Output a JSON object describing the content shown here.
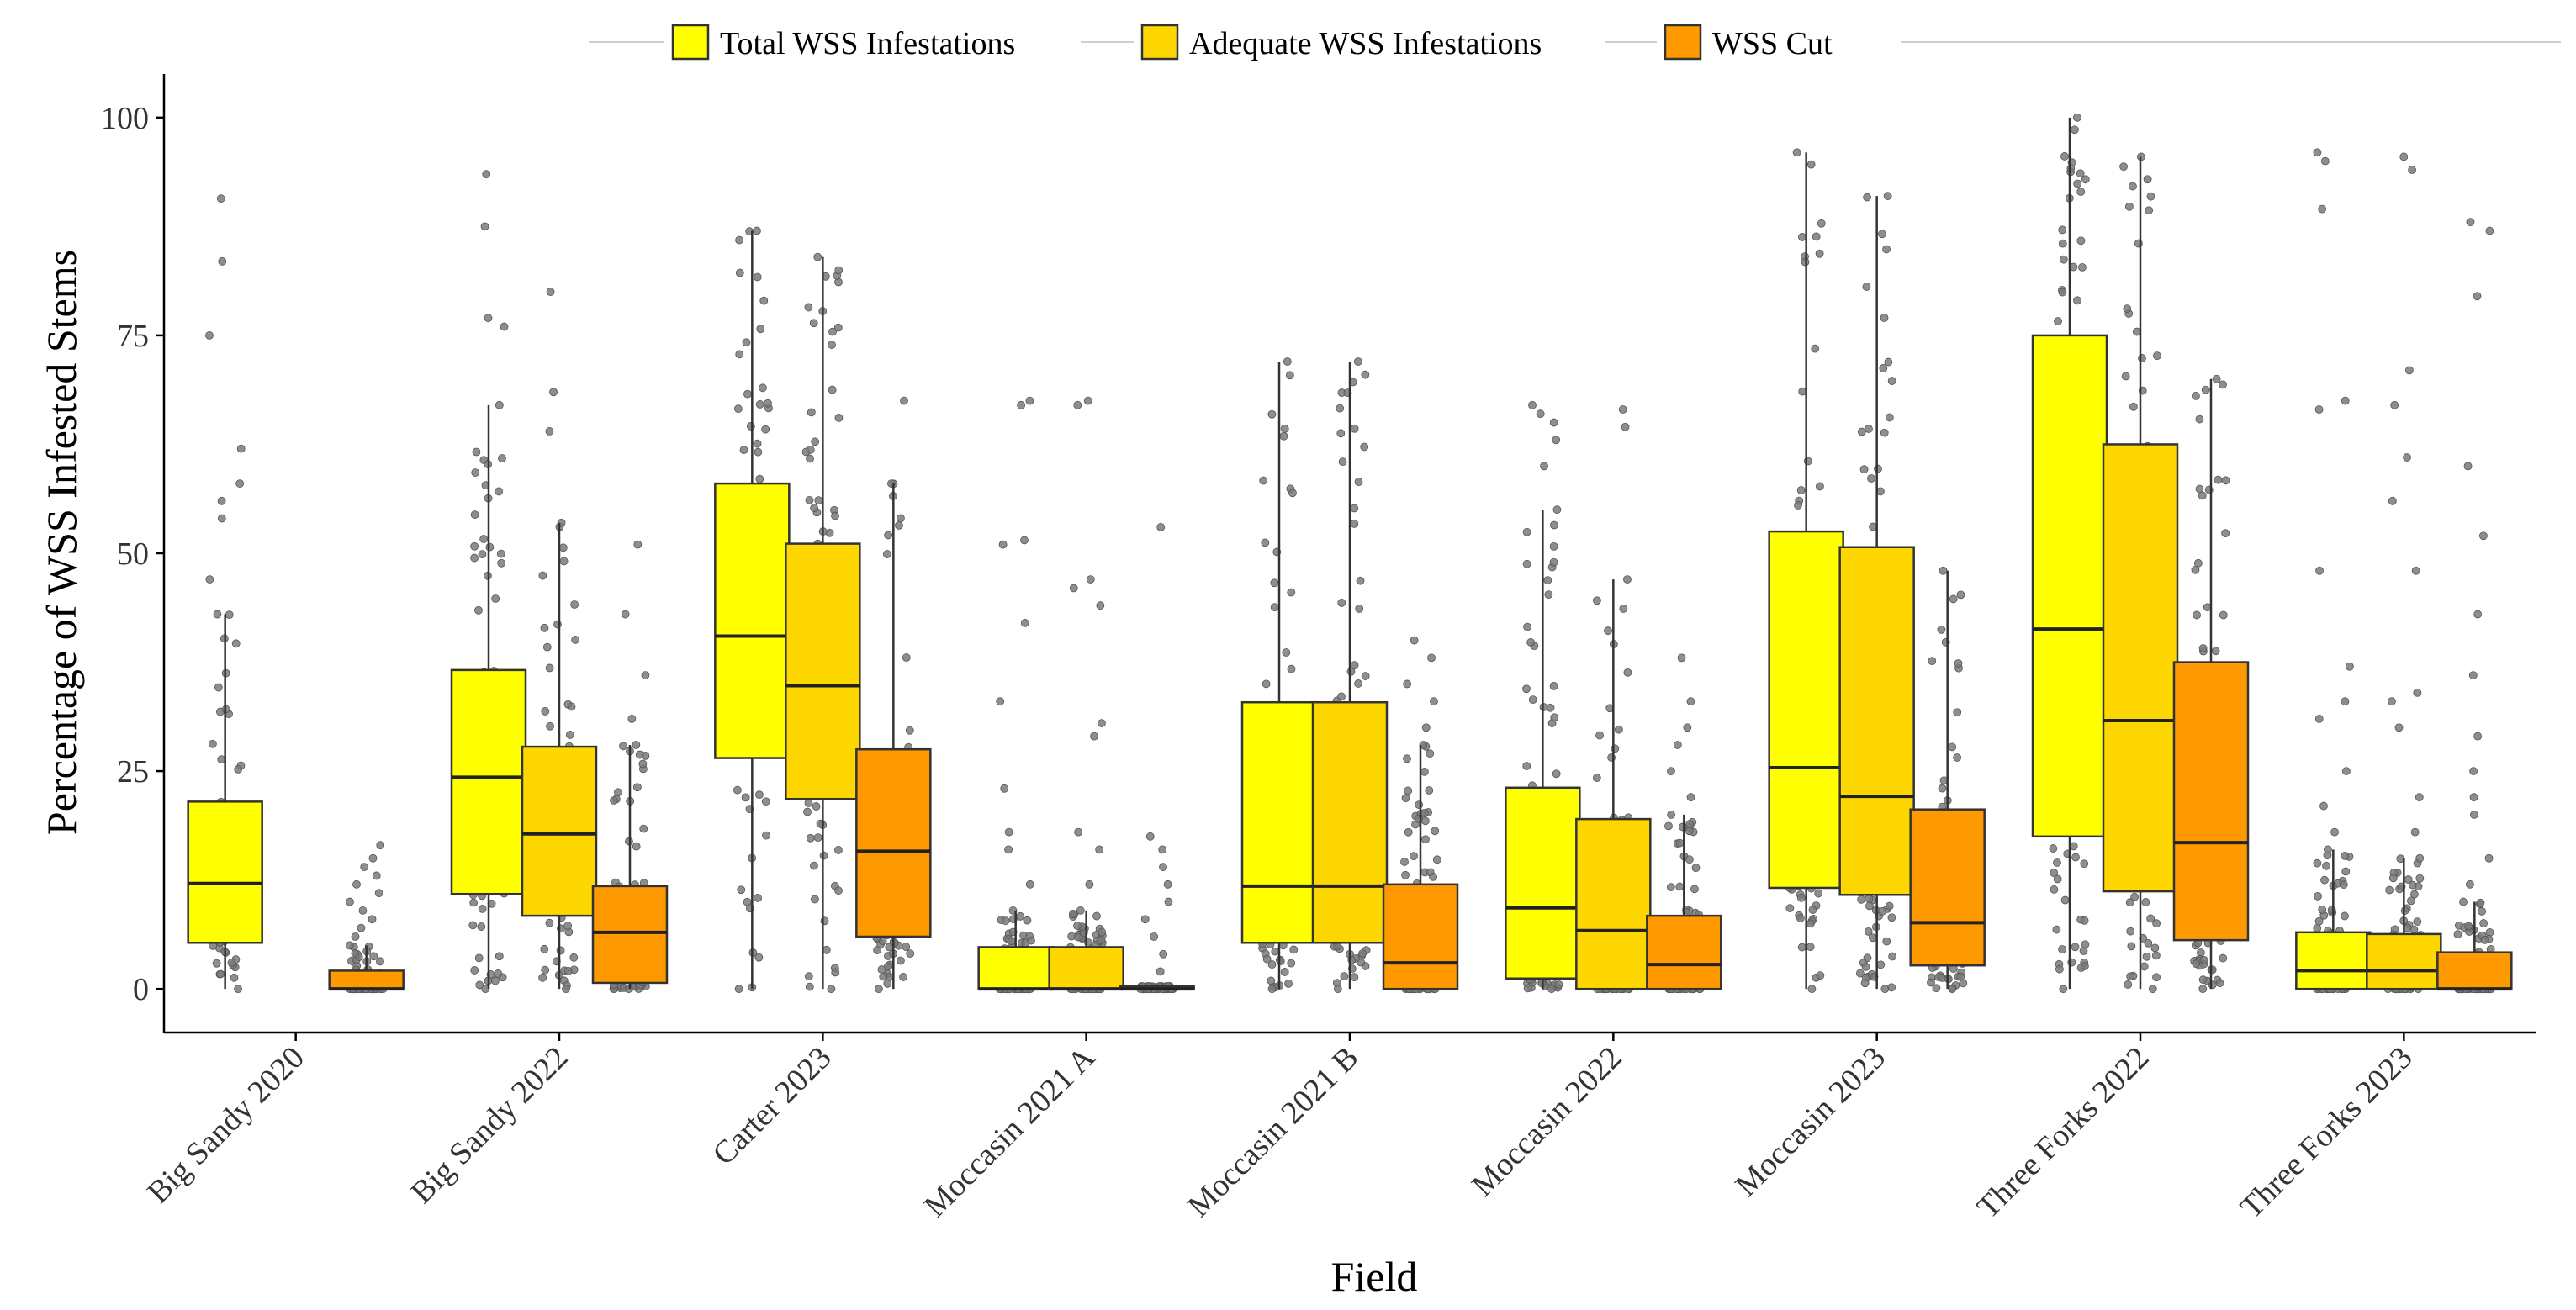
{
  "chart_data": {
    "type": "boxplot",
    "title": "",
    "xlabel": "Field",
    "ylabel": "Percentage of WSS Infested Stems",
    "ylim": [
      -5,
      105
    ],
    "yticks": [
      0,
      25,
      50,
      75,
      100
    ],
    "grid": false,
    "legend_position": "top",
    "categories": [
      "Big Sandy 2020",
      "Big Sandy 2022",
      "Carter 2023",
      "Moccasin 2021 A",
      "Moccasin 2021 B",
      "Moccasin 2022",
      "Moccasin 2023",
      "Three Forks 2022",
      "Three Forks 2023"
    ],
    "series": [
      {
        "name": "Total WSS Infestations",
        "color": "#FFFF00",
        "boxes": [
          {
            "category": "Big Sandy 2020",
            "q1": 5.3,
            "median": 12.1,
            "q3": 21.5,
            "whisker_low": 0,
            "whisker_high": 43,
            "outliers": [
              47,
              54,
              56,
              58,
              62,
              75,
              83.5,
              90.7
            ]
          },
          {
            "category": "Big Sandy 2022",
            "q1": 10.9,
            "median": 24.3,
            "q3": 36.6,
            "whisker_low": 0,
            "whisker_high": 67,
            "outliers": [
              76,
              77,
              87.5,
              93.5
            ]
          },
          {
            "category": "Carter 2023",
            "q1": 26.5,
            "median": 40.5,
            "q3": 58,
            "whisker_low": 0,
            "whisker_high": 87,
            "outliers": []
          },
          {
            "category": "Moccasin 2021 A",
            "q1": 0,
            "median": 0,
            "q3": 4.8,
            "whisker_low": 0,
            "whisker_high": 9,
            "outliers": [
              12,
              16,
              18,
              23,
              33,
              42,
              51,
              51.5,
              67,
              67.5
            ]
          },
          {
            "category": "Moccasin 2021 B",
            "q1": 5.3,
            "median": 11.8,
            "q3": 32.9,
            "whisker_low": 0,
            "whisker_high": 72,
            "outliers": []
          },
          {
            "category": "Moccasin 2022",
            "q1": 1.2,
            "median": 9.3,
            "q3": 23.1,
            "whisker_low": 0,
            "whisker_high": 55,
            "outliers": [
              60,
              63,
              65,
              66,
              67
            ]
          },
          {
            "category": "Moccasin 2023",
            "q1": 11.6,
            "median": 25.4,
            "q3": 52.5,
            "whisker_low": 0,
            "whisker_high": 96,
            "outliers": []
          },
          {
            "category": "Three Forks 2022",
            "q1": 17.5,
            "median": 41.3,
            "q3": 75,
            "whisker_low": 0,
            "whisker_high": 100,
            "outliers": []
          },
          {
            "category": "Three Forks 2023",
            "q1": 0,
            "median": 2.1,
            "q3": 6.5,
            "whisker_low": 0,
            "whisker_high": 16,
            "outliers": [
              18,
              21,
              25,
              31,
              33,
              37,
              48,
              66.5,
              67.5,
              89.5,
              95,
              96
            ]
          }
        ]
      },
      {
        "name": "Adequate WSS Infestations",
        "color": "#FFD700",
        "boxes": [
          {
            "category": "Big Sandy 2022",
            "q1": 8.4,
            "median": 17.8,
            "q3": 27.8,
            "whisker_low": 0,
            "whisker_high": 53.5,
            "outliers": [
              64,
              68.5,
              80
            ]
          },
          {
            "category": "Carter 2023",
            "q1": 21.8,
            "median": 34.8,
            "q3": 51.1,
            "whisker_low": 0,
            "whisker_high": 84,
            "outliers": []
          },
          {
            "category": "Moccasin 2021 A",
            "q1": 0,
            "median": 0,
            "q3": 4.8,
            "whisker_low": 0,
            "whisker_high": 9,
            "outliers": [
              12,
              16,
              18,
              29,
              30.5,
              44,
              46,
              47,
              67,
              67.5
            ]
          },
          {
            "category": "Moccasin 2021 B",
            "q1": 5.3,
            "median": 11.8,
            "q3": 32.9,
            "whisker_low": 0,
            "whisker_high": 72,
            "outliers": []
          },
          {
            "category": "Moccasin 2022",
            "q1": 0,
            "median": 6.7,
            "q3": 19.5,
            "whisker_low": 0,
            "whisker_high": 47,
            "outliers": [
              64.5,
              66.5
            ]
          },
          {
            "category": "Moccasin 2023",
            "q1": 10.8,
            "median": 22.1,
            "q3": 50.7,
            "whisker_low": 0,
            "whisker_high": 91,
            "outliers": []
          },
          {
            "category": "Three Forks 2022",
            "q1": 11.2,
            "median": 30.8,
            "q3": 62.5,
            "whisker_low": 0,
            "whisker_high": 95.5,
            "outliers": []
          },
          {
            "category": "Three Forks 2023",
            "q1": 0,
            "median": 2.1,
            "q3": 6.3,
            "whisker_low": 0,
            "whisker_high": 15,
            "outliers": [
              18,
              22,
              30,
              33,
              34,
              48,
              56,
              61,
              67,
              71,
              94,
              95.5
            ]
          }
        ]
      },
      {
        "name": "WSS Cut",
        "color": "#FF9900",
        "boxes": [
          {
            "category": "Big Sandy 2020",
            "q1": 0,
            "median": 0,
            "q3": 2.1,
            "whisker_low": 0,
            "whisker_high": 5,
            "outliers": [
              6,
              7,
              8,
              9,
              10,
              11,
              12,
              13,
              14,
              15,
              16.5
            ]
          },
          {
            "category": "Big Sandy 2022",
            "q1": 0.7,
            "median": 6.5,
            "q3": 11.8,
            "whisker_low": 0,
            "whisker_high": 28,
            "outliers": [
              31,
              36,
              43,
              51
            ]
          },
          {
            "category": "Carter 2023",
            "q1": 6,
            "median": 15.8,
            "q3": 27.5,
            "whisker_low": 0,
            "whisker_high": 58,
            "outliers": [
              67.5
            ]
          },
          {
            "category": "Moccasin 2021 A",
            "q1": 0,
            "median": 0,
            "q3": 0.3,
            "whisker_low": 0,
            "whisker_high": 0.3,
            "outliers": [
              2,
              4,
              6,
              8,
              10,
              12,
              14,
              16,
              17.5,
              53
            ]
          },
          {
            "category": "Moccasin 2021 B",
            "q1": 0,
            "median": 3,
            "q3": 12,
            "whisker_low": 0,
            "whisker_high": 28,
            "outliers": [
              30,
              33,
              35,
              38,
              40
            ]
          },
          {
            "category": "Moccasin 2022",
            "q1": 0,
            "median": 2.8,
            "q3": 8.4,
            "whisker_low": 0,
            "whisker_high": 20,
            "outliers": [
              22,
              25,
              28,
              30,
              33,
              38
            ]
          },
          {
            "category": "Moccasin 2023",
            "q1": 2.7,
            "median": 7.6,
            "q3": 20.6,
            "whisker_low": 0,
            "whisker_high": 48,
            "outliers": []
          },
          {
            "category": "Three Forks 2022",
            "q1": 5.6,
            "median": 16.8,
            "q3": 37.5,
            "whisker_low": 0,
            "whisker_high": 70,
            "outliers": []
          },
          {
            "category": "Three Forks 2023",
            "q1": 0,
            "median": 0,
            "q3": 4.2,
            "whisker_low": 0,
            "whisker_high": 10,
            "outliers": [
              12,
              15,
              20,
              22,
              25,
              29,
              36,
              43,
              52,
              60,
              79.5,
              87,
              88
            ]
          }
        ]
      }
    ]
  }
}
